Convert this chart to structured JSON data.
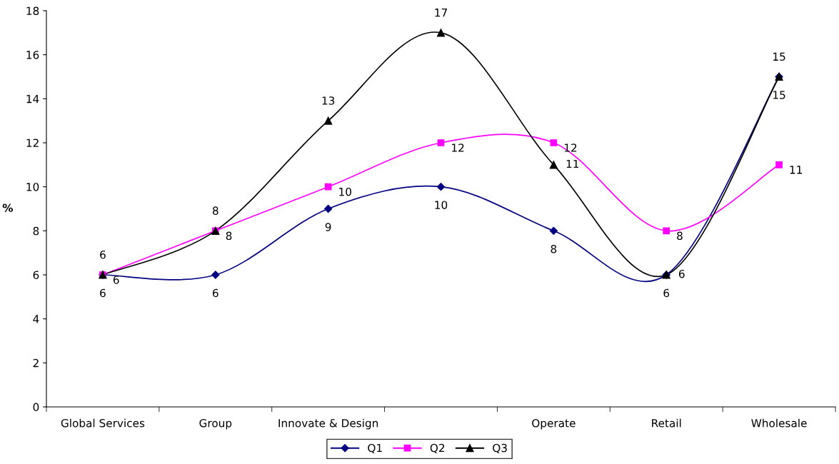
{
  "chart_data": {
    "type": "line",
    "ylabel": "%",
    "categories": [
      "Global Services",
      "Group",
      "Innovate & Design",
      null,
      "Operate",
      "Retail",
      "Wholesale"
    ],
    "series": [
      {
        "name": "Q1",
        "color": "#000080",
        "marker": "diamond",
        "values": [
          6,
          6,
          9,
          10,
          8,
          6,
          15
        ]
      },
      {
        "name": "Q2",
        "color": "#ff00ff",
        "marker": "square",
        "values": [
          6,
          8,
          10,
          12,
          12,
          8,
          11
        ]
      },
      {
        "name": "Q3",
        "color": "#000000",
        "marker": "triangle",
        "values": [
          6,
          8,
          13,
          17,
          11,
          6,
          15
        ]
      }
    ],
    "ylim": [
      0,
      18
    ],
    "yticks": [
      0,
      2,
      4,
      6,
      8,
      10,
      12,
      14,
      16,
      18
    ],
    "grid": false,
    "legend": "bottom",
    "data_labels": true,
    "line_style": "solid"
  }
}
